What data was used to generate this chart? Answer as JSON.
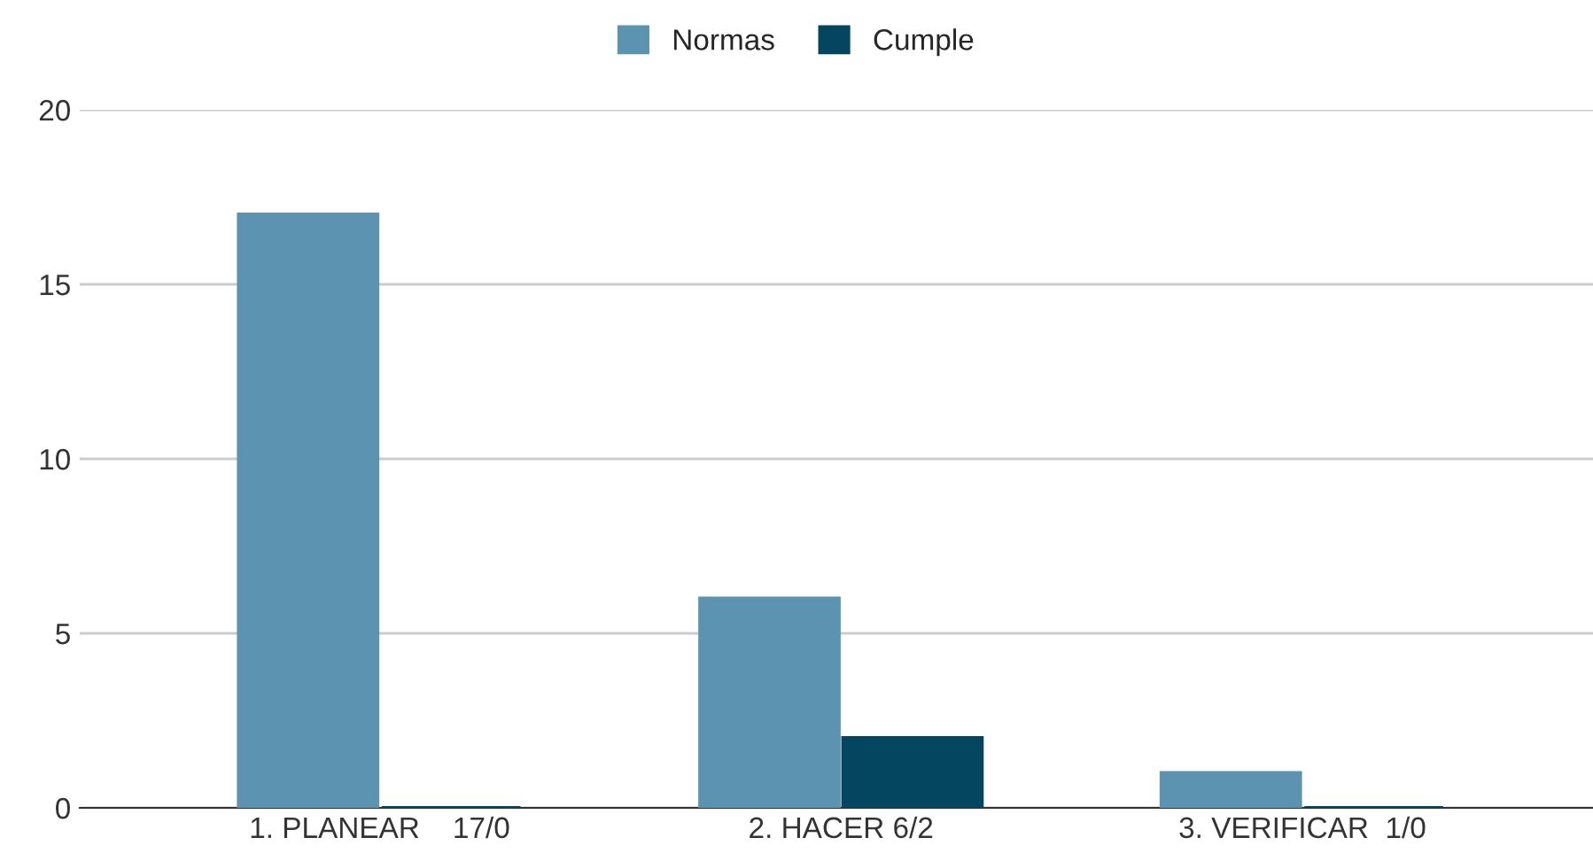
{
  "chart_data": {
    "type": "bar",
    "categories": [
      "1. PLANEAR    17/0",
      "2. HACER 6/2",
      "3. VERIFICAR  1/0"
    ],
    "series": [
      {
        "name": "Normas",
        "color": "#5b93b0",
        "values": [
          17,
          6,
          1
        ]
      },
      {
        "name": "Cumple",
        "color": "#04455f",
        "values": [
          0,
          2,
          0
        ]
      }
    ],
    "ylim": [
      0,
      20
    ],
    "yticks": [
      0,
      5,
      10,
      15,
      20
    ],
    "grid": "y",
    "legend": "top"
  }
}
